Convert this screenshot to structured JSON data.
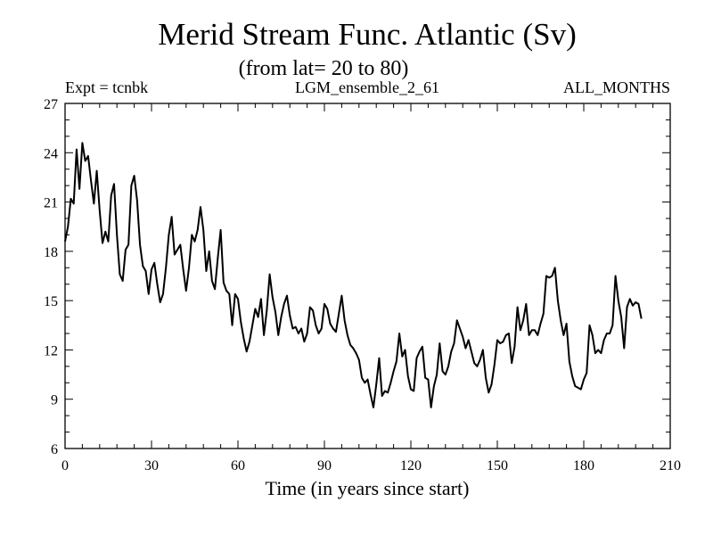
{
  "header": {
    "title": "Merid Stream Func. Atlantic (Sv)",
    "subtitle": "(from lat= 20 to 80)",
    "left_label": "Expt = tcnbk",
    "center_label": "LGM_ensemble_2_61",
    "right_label": "ALL_MONTHS"
  },
  "chart_data": {
    "type": "line",
    "title": "Merid Stream Func. Atlantic (Sv)",
    "subtitle": "(from lat= 20 to 80)",
    "xlabel": "Time (in years since start)",
    "ylabel": "",
    "xlim": [
      0,
      210
    ],
    "ylim": [
      6,
      27
    ],
    "x_ticks": [
      0,
      30,
      60,
      90,
      120,
      150,
      180,
      210
    ],
    "x_tick_labels": [
      "0",
      "30",
      "60",
      "90",
      "120",
      "150",
      "180",
      "210"
    ],
    "y_ticks": [
      6,
      9,
      12,
      15,
      18,
      21,
      24,
      27
    ],
    "y_tick_labels": [
      "6",
      "9",
      "12",
      "15",
      "18",
      "21",
      "24",
      "27"
    ],
    "grid": false,
    "line_color": "#000000",
    "series": [
      {
        "name": "tcnbk",
        "points": [
          [
            0,
            18.6
          ],
          [
            1,
            19.5
          ],
          [
            2,
            21.2
          ],
          [
            3,
            20.9
          ],
          [
            4,
            24.2
          ],
          [
            5,
            21.8
          ],
          [
            6,
            24.6
          ],
          [
            7,
            23.5
          ],
          [
            8,
            23.8
          ],
          [
            9,
            22.3
          ],
          [
            10,
            20.9
          ],
          [
            11,
            22.9
          ],
          [
            12,
            20.5
          ],
          [
            13,
            18.5
          ],
          [
            14,
            19.2
          ],
          [
            15,
            18.6
          ],
          [
            16,
            21.4
          ],
          [
            17,
            22.1
          ],
          [
            18,
            19.0
          ],
          [
            19,
            16.6
          ],
          [
            20,
            16.2
          ],
          [
            21,
            18.1
          ],
          [
            22,
            18.4
          ],
          [
            23,
            22.0
          ],
          [
            24,
            22.6
          ],
          [
            25,
            21.1
          ],
          [
            26,
            18.4
          ],
          [
            27,
            17.1
          ],
          [
            28,
            16.8
          ],
          [
            29,
            15.4
          ],
          [
            30,
            16.9
          ],
          [
            31,
            17.3
          ],
          [
            32,
            16.0
          ],
          [
            33,
            14.9
          ],
          [
            34,
            15.4
          ],
          [
            35,
            17.0
          ],
          [
            36,
            19.0
          ],
          [
            37,
            20.1
          ],
          [
            38,
            17.8
          ],
          [
            39,
            18.1
          ],
          [
            40,
            18.4
          ],
          [
            41,
            16.9
          ],
          [
            42,
            15.6
          ],
          [
            43,
            17.0
          ],
          [
            44,
            19.0
          ],
          [
            45,
            18.6
          ],
          [
            46,
            19.3
          ],
          [
            47,
            20.7
          ],
          [
            48,
            19.3
          ],
          [
            49,
            16.8
          ],
          [
            50,
            18.0
          ],
          [
            51,
            16.2
          ],
          [
            52,
            15.7
          ],
          [
            53,
            17.6
          ],
          [
            54,
            19.3
          ],
          [
            55,
            16.1
          ],
          [
            56,
            15.6
          ],
          [
            57,
            15.4
          ],
          [
            58,
            13.5
          ],
          [
            59,
            15.4
          ],
          [
            60,
            15.1
          ],
          [
            61,
            13.7
          ],
          [
            62,
            12.7
          ],
          [
            63,
            11.9
          ],
          [
            64,
            12.5
          ],
          [
            65,
            13.5
          ],
          [
            66,
            14.5
          ],
          [
            67,
            14.0
          ],
          [
            68,
            15.1
          ],
          [
            69,
            12.9
          ],
          [
            70,
            14.4
          ],
          [
            71,
            16.6
          ],
          [
            72,
            15.2
          ],
          [
            73,
            14.3
          ],
          [
            74,
            12.9
          ],
          [
            75,
            14.0
          ],
          [
            76,
            14.8
          ],
          [
            77,
            15.3
          ],
          [
            78,
            14.1
          ],
          [
            79,
            13.3
          ],
          [
            80,
            13.4
          ],
          [
            81,
            13.0
          ],
          [
            82,
            13.3
          ],
          [
            83,
            12.5
          ],
          [
            84,
            13.0
          ],
          [
            85,
            14.6
          ],
          [
            86,
            14.4
          ],
          [
            87,
            13.5
          ],
          [
            88,
            13.0
          ],
          [
            89,
            13.3
          ],
          [
            90,
            14.8
          ],
          [
            91,
            14.5
          ],
          [
            92,
            13.6
          ],
          [
            93,
            13.3
          ],
          [
            94,
            13.1
          ],
          [
            95,
            14.2
          ],
          [
            96,
            15.3
          ],
          [
            97,
            13.8
          ],
          [
            98,
            12.9
          ],
          [
            99,
            12.3
          ],
          [
            100,
            12.1
          ],
          [
            101,
            11.8
          ],
          [
            102,
            11.4
          ],
          [
            103,
            10.3
          ],
          [
            104,
            10.0
          ],
          [
            105,
            10.2
          ],
          [
            106,
            9.3
          ],
          [
            107,
            8.5
          ],
          [
            108,
            9.9
          ],
          [
            109,
            11.5
          ],
          [
            110,
            9.2
          ],
          [
            111,
            9.5
          ],
          [
            112,
            9.4
          ],
          [
            113,
            10.0
          ],
          [
            114,
            10.7
          ],
          [
            115,
            11.3
          ],
          [
            116,
            13.0
          ],
          [
            117,
            11.6
          ],
          [
            118,
            12.0
          ],
          [
            119,
            10.4
          ],
          [
            120,
            9.6
          ],
          [
            121,
            9.5
          ],
          [
            122,
            11.5
          ],
          [
            123,
            11.9
          ],
          [
            124,
            12.2
          ],
          [
            125,
            10.3
          ],
          [
            126,
            10.2
          ],
          [
            127,
            8.5
          ],
          [
            128,
            9.8
          ],
          [
            129,
            10.5
          ],
          [
            130,
            12.4
          ],
          [
            131,
            10.7
          ],
          [
            132,
            10.5
          ],
          [
            133,
            11.0
          ],
          [
            134,
            11.9
          ],
          [
            135,
            12.4
          ],
          [
            136,
            13.8
          ],
          [
            137,
            13.3
          ],
          [
            138,
            12.8
          ],
          [
            139,
            12.1
          ],
          [
            140,
            12.6
          ],
          [
            141,
            11.9
          ],
          [
            142,
            11.2
          ],
          [
            143,
            11.0
          ],
          [
            144,
            11.4
          ],
          [
            145,
            12.0
          ],
          [
            146,
            10.3
          ],
          [
            147,
            9.4
          ],
          [
            148,
            9.9
          ],
          [
            149,
            11.1
          ],
          [
            150,
            12.6
          ],
          [
            151,
            12.4
          ],
          [
            152,
            12.5
          ],
          [
            153,
            12.9
          ],
          [
            154,
            13.0
          ],
          [
            155,
            11.2
          ],
          [
            156,
            12.2
          ],
          [
            157,
            14.6
          ],
          [
            158,
            13.2
          ],
          [
            159,
            13.8
          ],
          [
            160,
            14.8
          ],
          [
            161,
            12.9
          ],
          [
            162,
            13.2
          ],
          [
            163,
            13.2
          ],
          [
            164,
            12.9
          ],
          [
            165,
            13.6
          ],
          [
            166,
            14.2
          ],
          [
            167,
            16.5
          ],
          [
            168,
            16.4
          ],
          [
            169,
            16.5
          ],
          [
            170,
            17.0
          ],
          [
            171,
            15.0
          ],
          [
            172,
            13.8
          ],
          [
            173,
            12.9
          ],
          [
            174,
            13.6
          ],
          [
            175,
            11.3
          ],
          [
            176,
            10.4
          ],
          [
            177,
            9.8
          ],
          [
            178,
            9.7
          ],
          [
            179,
            9.6
          ],
          [
            180,
            10.2
          ],
          [
            181,
            10.6
          ],
          [
            182,
            13.5
          ],
          [
            183,
            12.9
          ],
          [
            184,
            11.8
          ],
          [
            185,
            12.0
          ],
          [
            186,
            11.8
          ],
          [
            187,
            12.6
          ],
          [
            188,
            13.0
          ],
          [
            189,
            13.0
          ],
          [
            190,
            13.5
          ],
          [
            191,
            16.5
          ],
          [
            192,
            15.0
          ],
          [
            193,
            14.0
          ],
          [
            194,
            12.1
          ],
          [
            195,
            14.6
          ],
          [
            196,
            15.1
          ],
          [
            197,
            14.7
          ],
          [
            198,
            14.9
          ],
          [
            199,
            14.8
          ],
          [
            200,
            13.9
          ]
        ]
      }
    ]
  }
}
